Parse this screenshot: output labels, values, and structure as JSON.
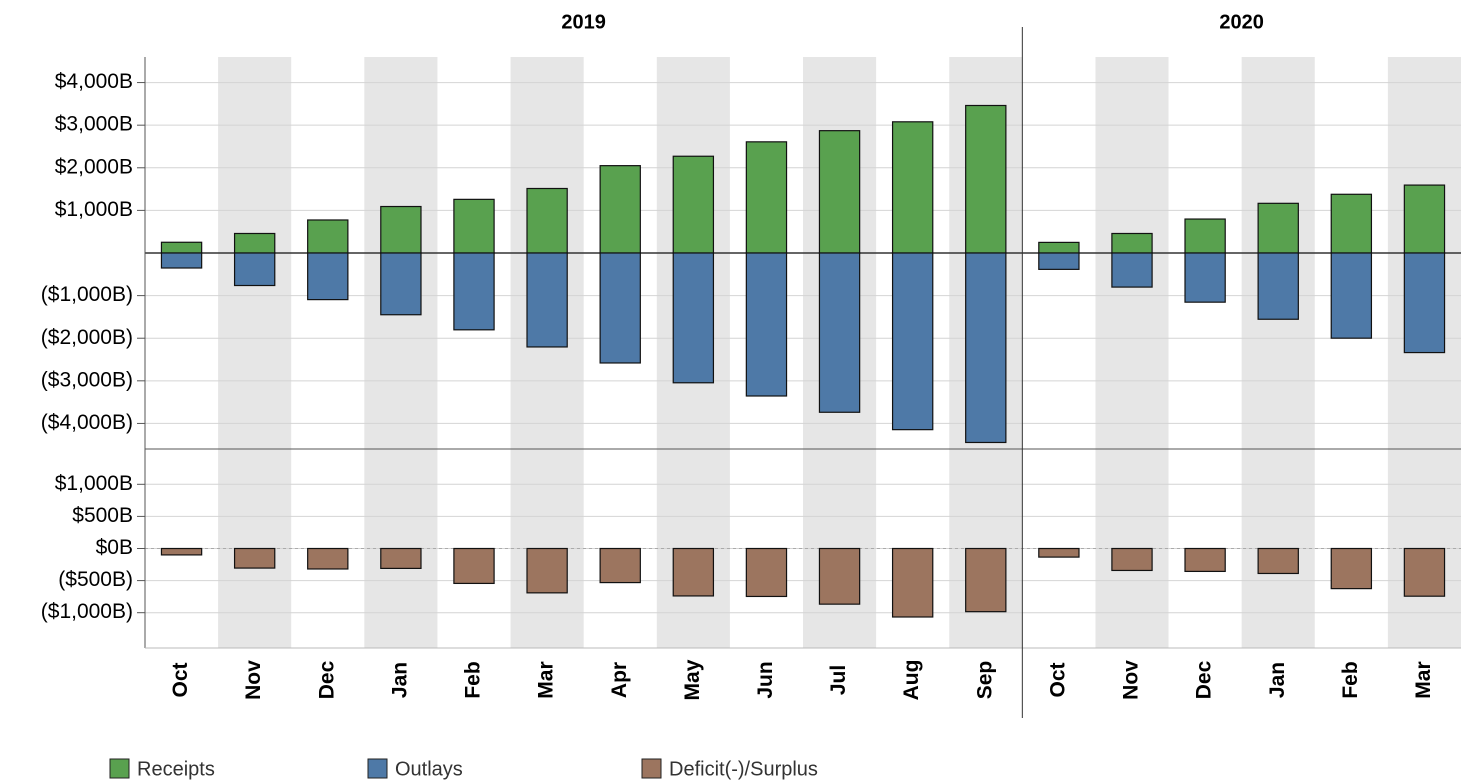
{
  "chart_data": {
    "type": "bar",
    "groups": [
      {
        "label": "2019",
        "categories": [
          "Oct",
          "Nov",
          "Dec",
          "Jan",
          "Feb",
          "Mar",
          "Apr",
          "May",
          "Jun",
          "Jul",
          "Aug",
          "Sep"
        ]
      },
      {
        "label": "2020",
        "categories": [
          "Oct",
          "Nov",
          "Dec",
          "Jan",
          "Feb",
          "Mar"
        ]
      }
    ],
    "series": [
      {
        "name": "Receipts",
        "color": "#59a14f",
        "values": [
          252,
          458,
          775,
          1091,
          1259,
          1514,
          2050,
          2271,
          2609,
          2871,
          3079,
          3462,
          249,
          458,
          797,
          1166,
          1378,
          1594
        ]
      },
      {
        "name": "Outlays",
        "color": "#4e79a7",
        "values": [
          -352,
          -763,
          -1094,
          -1449,
          -1803,
          -2205,
          -2581,
          -3046,
          -3356,
          -3738,
          -4146,
          -4447,
          -384,
          -800,
          -1154,
          -1555,
          -1999,
          -2337
        ]
      },
      {
        "name": "Deficit(-)/Surplus",
        "color": "#9c755f",
        "axis": "y2",
        "values": [
          -100,
          -305,
          -319,
          -310,
          -544,
          -691,
          -531,
          -739,
          -747,
          -867,
          -1067,
          -984,
          -134,
          -342,
          -357,
          -389,
          -625,
          -743
        ]
      }
    ],
    "ylim": [
      -4600,
      4600
    ],
    "yticks": [
      {
        "value": 4000,
        "label": "$4,000B"
      },
      {
        "value": 3000,
        "label": "$3,000B"
      },
      {
        "value": 2000,
        "label": "$2,000B"
      },
      {
        "value": 1000,
        "label": "$1,000B"
      },
      {
        "value": -1000,
        "label": "($1,000B)"
      },
      {
        "value": -2000,
        "label": "($2,000B)"
      },
      {
        "value": -3000,
        "label": "($3,000B)"
      },
      {
        "value": -4000,
        "label": "($4,000B)"
      }
    ],
    "y2lim": [
      -1550,
      1550
    ],
    "y2ticks": [
      {
        "value": 1000,
        "label": "$1,000B"
      },
      {
        "value": 500,
        "label": "$500B"
      },
      {
        "value": 0,
        "label": "$0B"
      },
      {
        "value": -500,
        "label": "($500B)"
      },
      {
        "value": -1000,
        "label": "($1,000B)"
      }
    ],
    "grid": true
  }
}
